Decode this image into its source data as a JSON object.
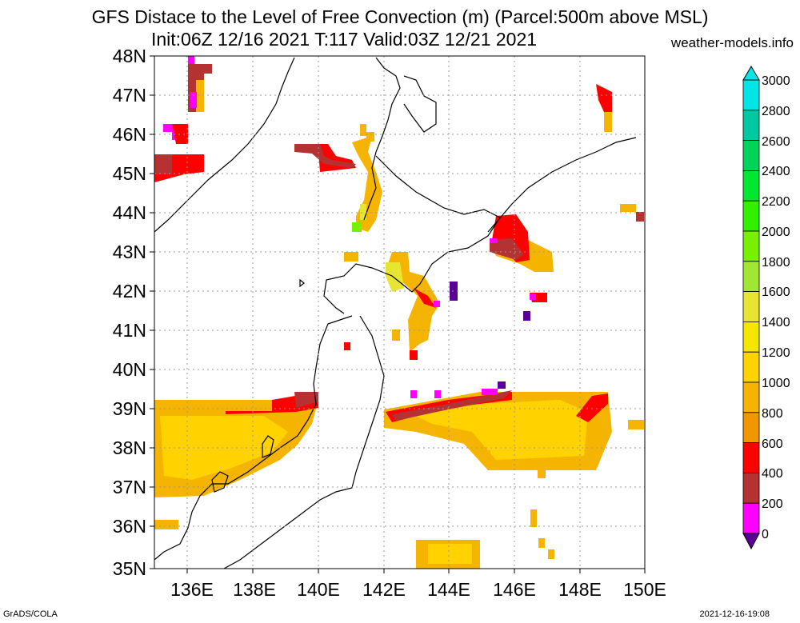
{
  "header": {
    "title_line1": "GFS Distace to the Level of Free Convection (m) (Parcel:500m above MSL)",
    "title_line2": "Init:06Z 12/16 2021 T:117 Valid:03Z 12/21 2021",
    "site": "weather-models.info"
  },
  "footer": {
    "left": "GrADS/COLA",
    "right": "2021-12-16-19:08"
  },
  "axes": {
    "lat_labels": [
      "48N",
      "47N",
      "46N",
      "45N",
      "44N",
      "43N",
      "42N",
      "41N",
      "40N",
      "39N",
      "38N",
      "37N",
      "36N",
      "35N"
    ],
    "lon_labels": [
      "136E",
      "138E",
      "140E",
      "142E",
      "144E",
      "146E",
      "148E",
      "150E"
    ],
    "lat_range": [
      35,
      48
    ],
    "lon_range": [
      135,
      150
    ]
  },
  "colorbar": {
    "labels": [
      "3000",
      "2800",
      "2600",
      "2400",
      "2200",
      "2000",
      "1800",
      "1600",
      "1400",
      "1200",
      "1000",
      "800",
      "600",
      "400",
      "200",
      "0"
    ],
    "colors": [
      "#00e6e6",
      "#00c8a0",
      "#00d25a",
      "#00e632",
      "#32f000",
      "#78f000",
      "#a0e632",
      "#e6e632",
      "#f5e600",
      "#ffd200",
      "#f5b400",
      "#f09600",
      "#ff0000",
      "#b43232",
      "#ff00ff",
      "#5a0096"
    ]
  }
}
